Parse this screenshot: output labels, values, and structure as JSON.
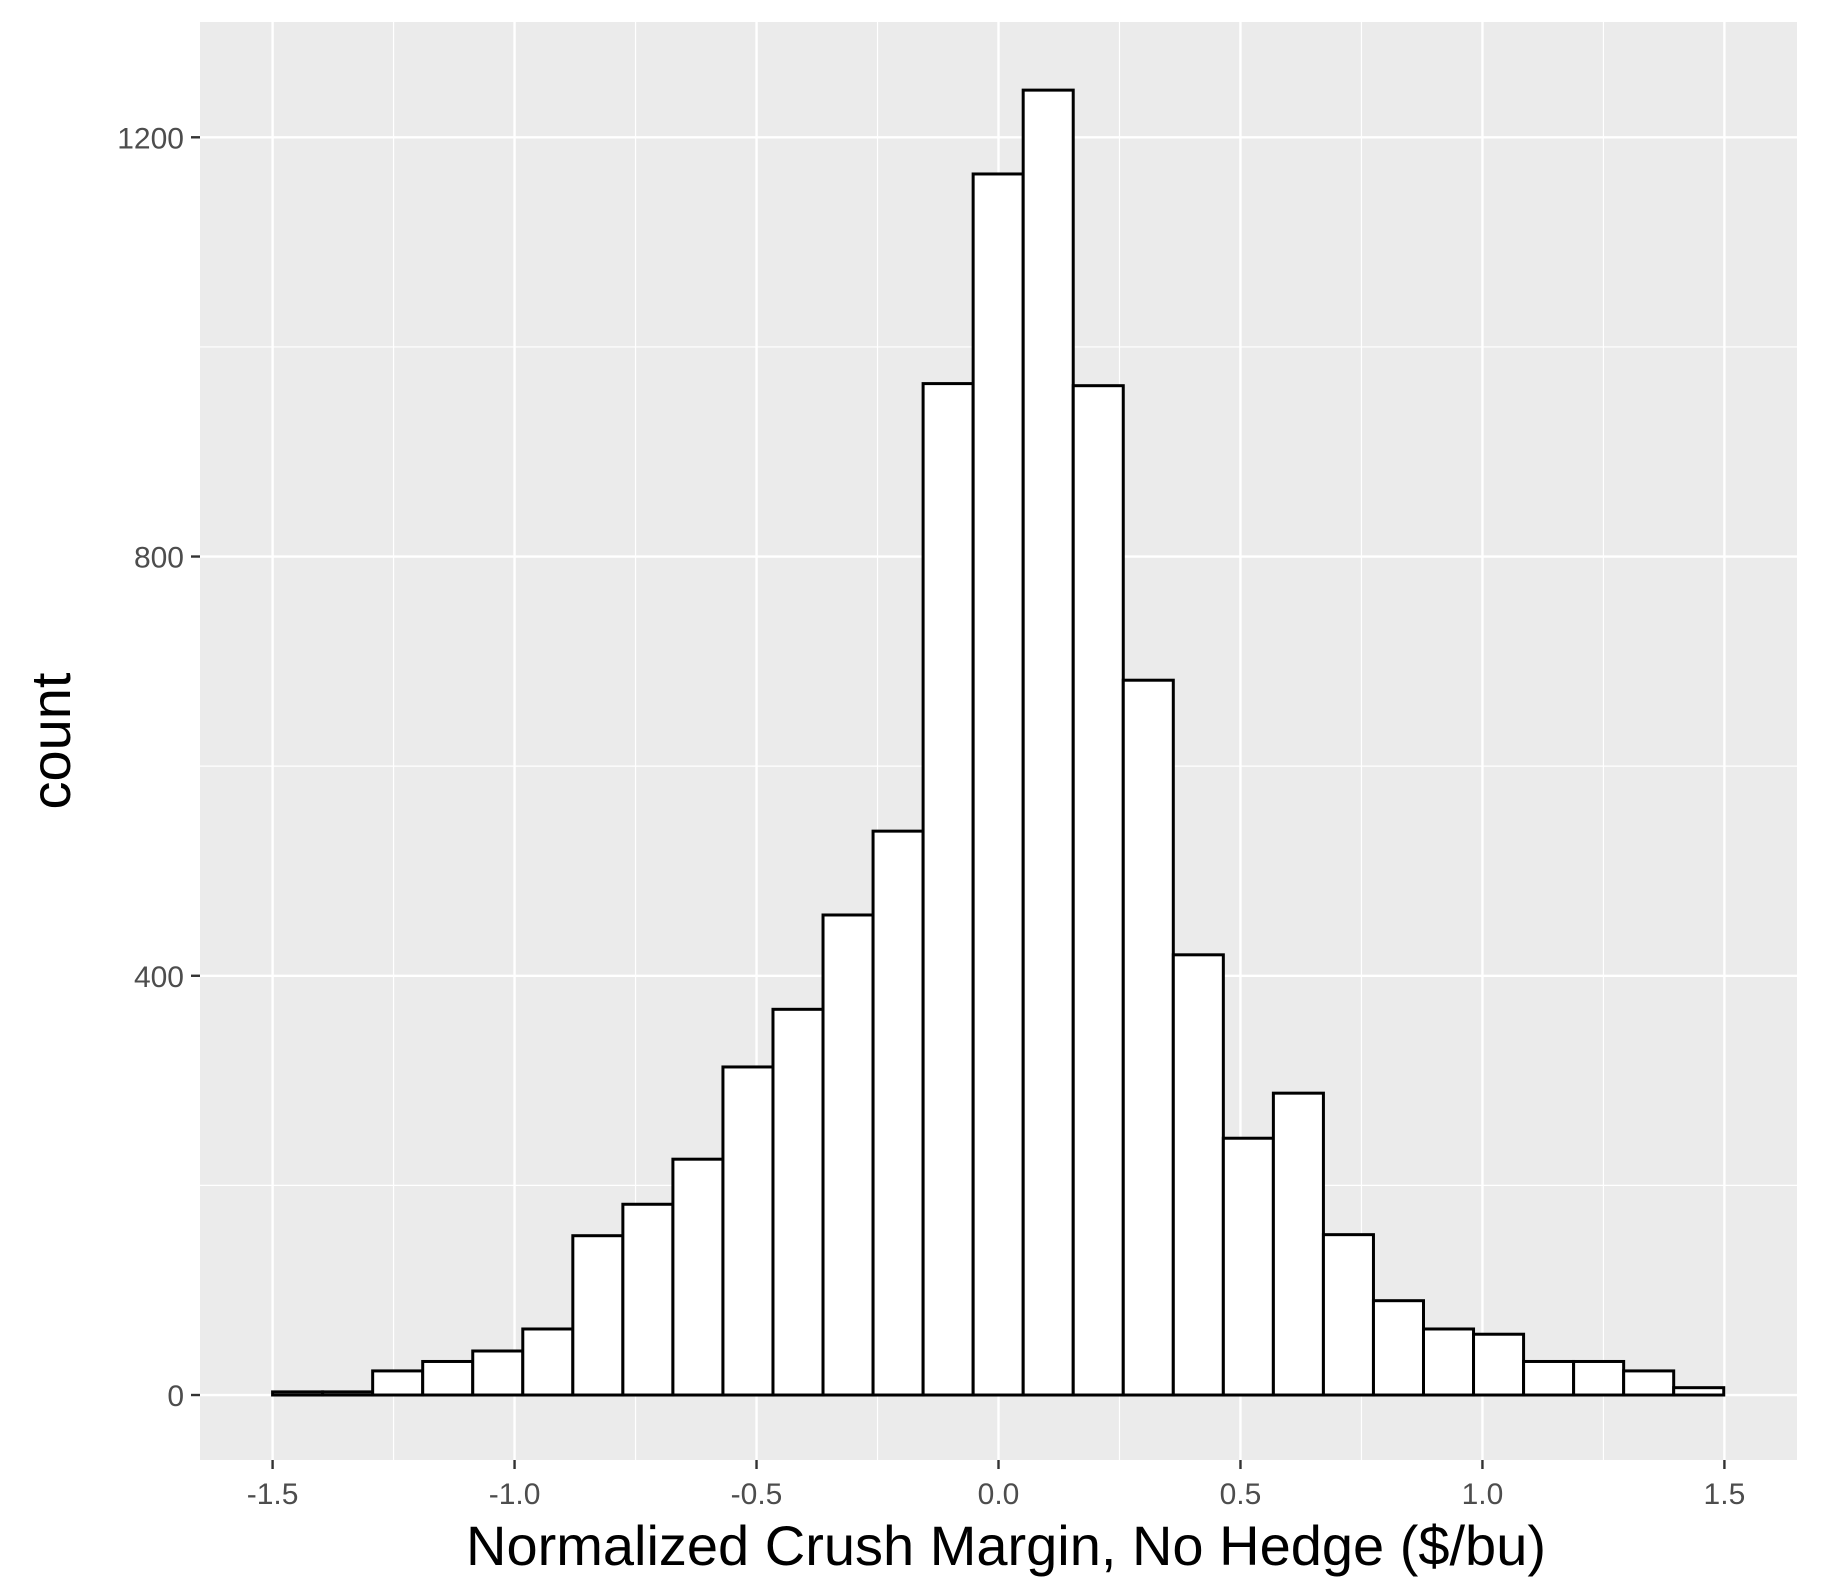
{
  "chart_data": {
    "type": "histogram",
    "xlabel": "Normalized Crush Margin, No Hedge ($/bu)",
    "ylabel": "count",
    "xlim": [
      -1.65,
      1.65
    ],
    "ylim": [
      -62,
      1310
    ],
    "x_ticks": [
      -1.5,
      -1.0,
      -0.5,
      0.0,
      0.5,
      1.0,
      1.5
    ],
    "x_tick_labels": [
      "-1.5",
      "-1.0",
      "-0.5",
      "0.0",
      "0.5",
      "1.0",
      "1.5"
    ],
    "y_ticks": [
      0,
      400,
      800,
      1200
    ],
    "y_tick_labels": [
      "0",
      "400",
      "800",
      "1200"
    ],
    "grid": true,
    "panel_background": "#ebebeb",
    "grid_color": "#ffffff",
    "bar_fill": "#ffffff",
    "bar_outline": "#000000",
    "bin_start": -1.5,
    "bin_width": 0.1034,
    "counts": [
      3,
      3,
      23,
      32,
      42,
      63,
      152,
      182,
      225,
      313,
      368,
      458,
      538,
      965,
      1165,
      1245,
      963,
      682,
      420,
      245,
      288,
      153,
      90,
      63,
      58,
      32,
      32,
      23,
      7
    ]
  }
}
